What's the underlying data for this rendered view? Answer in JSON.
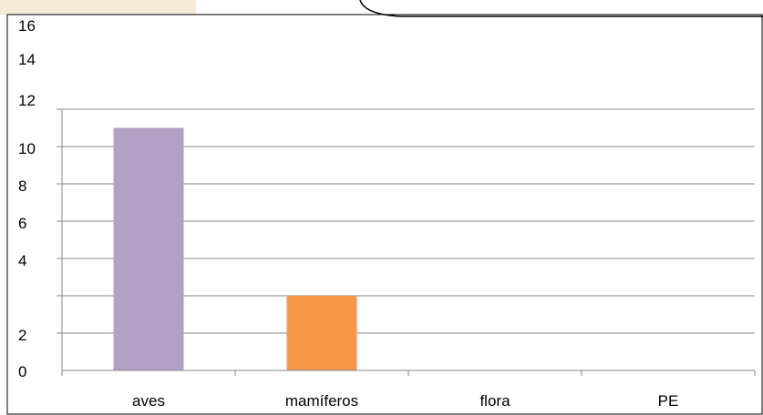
{
  "chart_data": {
    "type": "bar",
    "categories": [
      "aves",
      "mamíferos",
      "flora",
      "PE"
    ],
    "values": [
      13,
      4,
      0,
      0
    ],
    "colors": [
      "#b2a1c7",
      "#f79646",
      "#4f81bd",
      "#4f81bd"
    ],
    "ylim": [
      0,
      16
    ],
    "y_tick_labels": [
      "0",
      "2",
      "4",
      "6",
      "8",
      "10",
      "12",
      "14",
      "16"
    ],
    "grid": true,
    "title": "",
    "xlabel": "",
    "ylabel": ""
  }
}
